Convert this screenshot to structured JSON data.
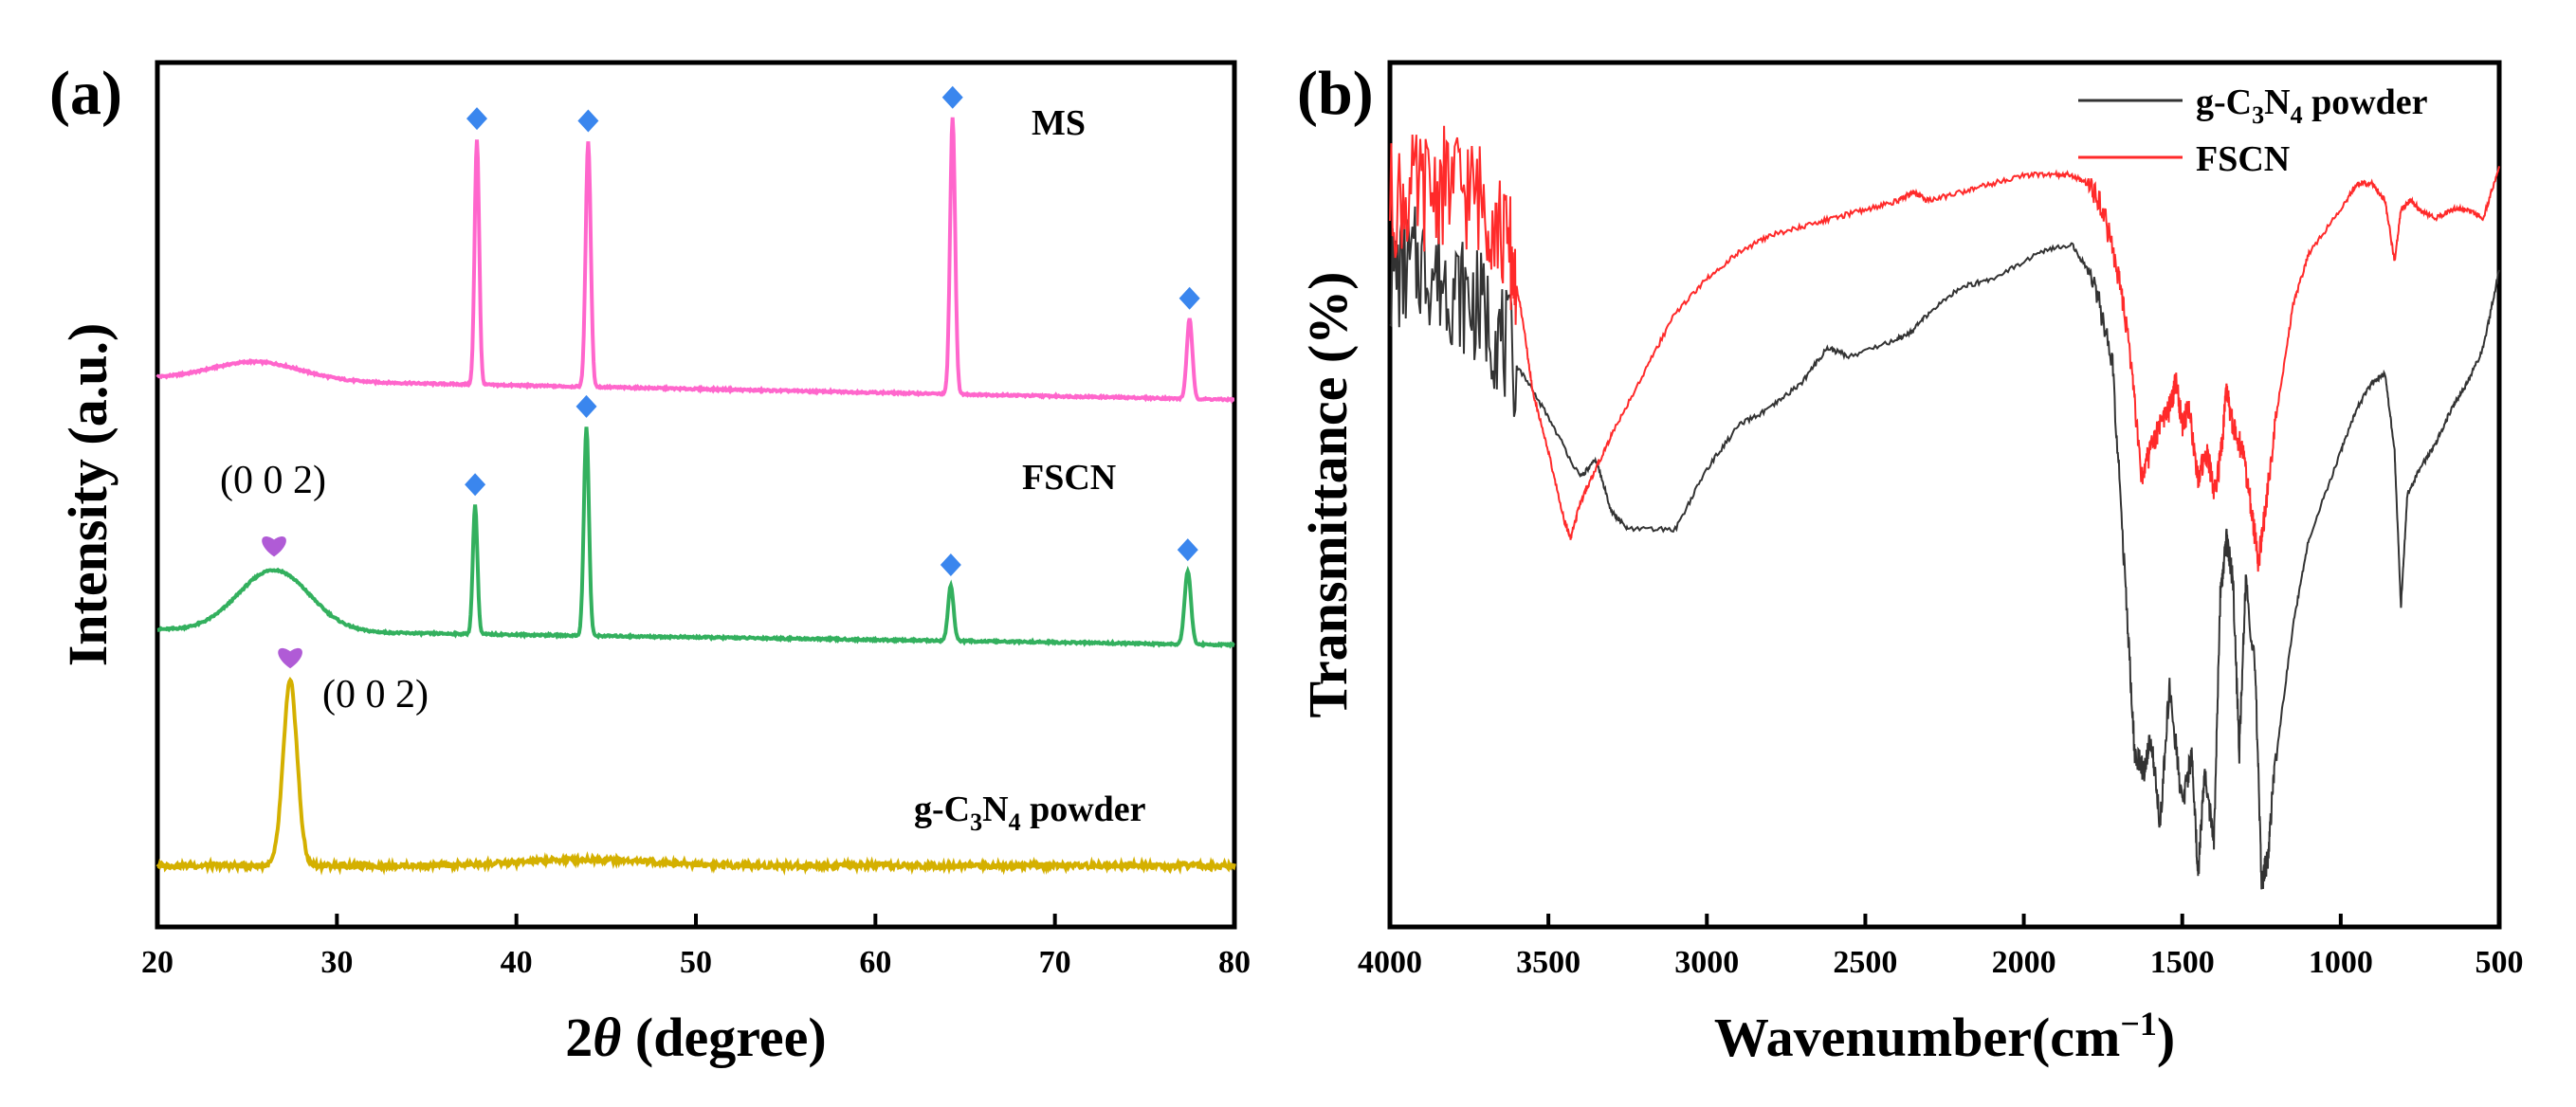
{
  "chart_data": [
    {
      "panel": "(a)",
      "type": "line",
      "title": "",
      "xlabel_prefix": "2",
      "xlabel_theta": "θ",
      "xlabel_suffix": " (degree)",
      "ylabel": "Intensity (a.u.)",
      "xlim": [
        20,
        80
      ],
      "xticks": [
        "20",
        "30",
        "40",
        "50",
        "60",
        "70",
        "80"
      ],
      "series": [
        {
          "name": "MS",
          "label_text": "MS",
          "color": "#ff66cc",
          "offset": 8.0,
          "baseline": 0.35,
          "hump": {
            "center": 25.5,
            "width": 3.5,
            "height": 0.3
          },
          "peaks": [
            {
              "x": 37.8,
              "h": 4.0,
              "w": 0.18
            },
            {
              "x": 44.0,
              "h": 4.0,
              "w": 0.2
            },
            {
              "x": 64.3,
              "h": 4.5,
              "w": 0.2
            },
            {
              "x": 77.5,
              "h": 1.3,
              "w": 0.22
            }
          ],
          "markers": [
            37.8,
            44.0,
            64.3,
            77.5
          ]
        },
        {
          "name": "FSCN",
          "label_text": "FSCN",
          "color": "#33b05e",
          "offset": 4.0,
          "baseline": 0.25,
          "hump": {
            "center": 26.5,
            "width": 2.8,
            "height": 1.0
          },
          "peaks": [
            {
              "x": 37.7,
              "h": 2.1,
              "w": 0.18
            },
            {
              "x": 43.9,
              "h": 3.4,
              "w": 0.2
            },
            {
              "x": 64.2,
              "h": 0.9,
              "w": 0.22
            },
            {
              "x": 77.4,
              "h": 1.2,
              "w": 0.25
            }
          ],
          "markers": [
            37.7,
            43.9,
            64.2,
            77.4
          ],
          "annotation": {
            "text": "(0 0 2)",
            "x": 26.5
          }
        },
        {
          "name": "g-C3N4 powder",
          "label_main": "g-C",
          "label_sub1": "3",
          "label_mid": "N",
          "label_sub2": "4",
          "label_tail": " powder",
          "color": "#d4b000",
          "offset": 0.4,
          "baseline": 0.0,
          "hump": {
            "center": 44.0,
            "width": 5.0,
            "height": 0.1
          },
          "peaks": [
            {
              "x": 27.4,
              "h": 3.0,
              "w": 0.55
            }
          ],
          "markers": [],
          "annotation": {
            "text": "(0 0 2)",
            "x": 27.4
          }
        }
      ],
      "marker_color_diamond": "#3a86ee",
      "marker_color_heart": "#b05bd6"
    },
    {
      "panel": "(b)",
      "type": "line",
      "title": "",
      "xlabel_prefix": "Wavenumber(cm",
      "xlabel_sup": "−1",
      "xlabel_suffix": ")",
      "ylabel": "Transmittance (%)",
      "xlim": [
        4000,
        500
      ],
      "xticks": [
        "4000",
        "3500",
        "3000",
        "2500",
        "2000",
        "1500",
        "1000",
        "500"
      ],
      "legend": [
        {
          "main": "g-C",
          "sub1": "3",
          "mid": "N",
          "sub2": "4",
          "tail": " powder",
          "color": "#333333"
        },
        {
          "main": "FSCN",
          "color": "#ff2a2a"
        }
      ],
      "series": [
        {
          "name": "g-C3N4 powder",
          "color": "#333333",
          "points": [
            [
              4000,
              75
            ],
            [
              3900,
              77
            ],
            [
              3800,
              74
            ],
            [
              3700,
              71
            ],
            [
              3600,
              65
            ],
            [
              3500,
              59
            ],
            [
              3400,
              52
            ],
            [
              3350,
              54
            ],
            [
              3300,
              48
            ],
            [
              3250,
              46
            ],
            [
              3100,
              46
            ],
            [
              3000,
              53
            ],
            [
              2900,
              58
            ],
            [
              2800,
              60
            ],
            [
              2700,
              63
            ],
            [
              2620,
              67
            ],
            [
              2550,
              66
            ],
            [
              2400,
              68
            ],
            [
              2350,
              69
            ],
            [
              2300,
              71
            ],
            [
              2200,
              74
            ],
            [
              2100,
              75
            ],
            [
              1950,
              78
            ],
            [
              1850,
              79
            ],
            [
              1780,
              75
            ],
            [
              1720,
              65
            ],
            [
              1680,
              40
            ],
            [
              1650,
              20
            ],
            [
              1620,
              18
            ],
            [
              1600,
              22
            ],
            [
              1570,
              12
            ],
            [
              1540,
              28
            ],
            [
              1500,
              14
            ],
            [
              1470,
              20
            ],
            [
              1450,
              6
            ],
            [
              1430,
              18
            ],
            [
              1400,
              10
            ],
            [
              1380,
              38
            ],
            [
              1360,
              45
            ],
            [
              1340,
              40
            ],
            [
              1320,
              20
            ],
            [
              1300,
              40
            ],
            [
              1270,
              30
            ],
            [
              1250,
              5
            ],
            [
              1230,
              8
            ],
            [
              1210,
              18
            ],
            [
              1150,
              35
            ],
            [
              1100,
              45
            ],
            [
              1000,
              55
            ],
            [
              950,
              60
            ],
            [
              900,
              63
            ],
            [
              860,
              64
            ],
            [
              830,
              55
            ],
            [
              810,
              37
            ],
            [
              790,
              50
            ],
            [
              750,
              53
            ],
            [
              700,
              56
            ],
            [
              650,
              60
            ],
            [
              600,
              63
            ],
            [
              550,
              67
            ],
            [
              500,
              76
            ]
          ]
        },
        {
          "name": "FSCN",
          "color": "#ff2a2a",
          "points": [
            [
              4000,
              84
            ],
            [
              3900,
              85
            ],
            [
              3800,
              86
            ],
            [
              3700,
              84
            ],
            [
              3620,
              78
            ],
            [
              3580,
              70
            ],
            [
              3550,
              62
            ],
            [
              3500,
              55
            ],
            [
              3450,
              47
            ],
            [
              3430,
              45
            ],
            [
              3400,
              49
            ],
            [
              3350,
              53
            ],
            [
              3300,
              57
            ],
            [
              3200,
              64
            ],
            [
              3100,
              71
            ],
            [
              3000,
              75
            ],
            [
              2900,
              78
            ],
            [
              2800,
              80
            ],
            [
              2700,
              81
            ],
            [
              2600,
              82
            ],
            [
              2500,
              83
            ],
            [
              2400,
              84
            ],
            [
              2350,
              85
            ],
            [
              2300,
              84
            ],
            [
              2200,
              85
            ],
            [
              2100,
              86
            ],
            [
              2000,
              87
            ],
            [
              1900,
              87
            ],
            [
              1850,
              87
            ],
            [
              1800,
              86
            ],
            [
              1750,
              83
            ],
            [
              1700,
              75
            ],
            [
              1660,
              65
            ],
            [
              1630,
              52
            ],
            [
              1600,
              55
            ],
            [
              1570,
              58
            ],
            [
              1540,
              60
            ],
            [
              1520,
              63
            ],
            [
              1500,
              58
            ],
            [
              1480,
              60
            ],
            [
              1450,
              52
            ],
            [
              1420,
              55
            ],
            [
              1400,
              50
            ],
            [
              1380,
              54
            ],
            [
              1360,
              62
            ],
            [
              1340,
              58
            ],
            [
              1310,
              55
            ],
            [
              1280,
              48
            ],
            [
              1260,
              42
            ],
            [
              1240,
              48
            ],
            [
              1200,
              60
            ],
            [
              1150,
              72
            ],
            [
              1100,
              78
            ],
            [
              1000,
              83
            ],
            [
              950,
              86
            ],
            [
              900,
              86
            ],
            [
              860,
              84
            ],
            [
              830,
              77
            ],
            [
              810,
              83
            ],
            [
              780,
              84
            ],
            [
              750,
              83
            ],
            [
              700,
              82
            ],
            [
              650,
              83
            ],
            [
              600,
              83
            ],
            [
              550,
              82
            ],
            [
              500,
              88
            ]
          ]
        }
      ]
    }
  ]
}
